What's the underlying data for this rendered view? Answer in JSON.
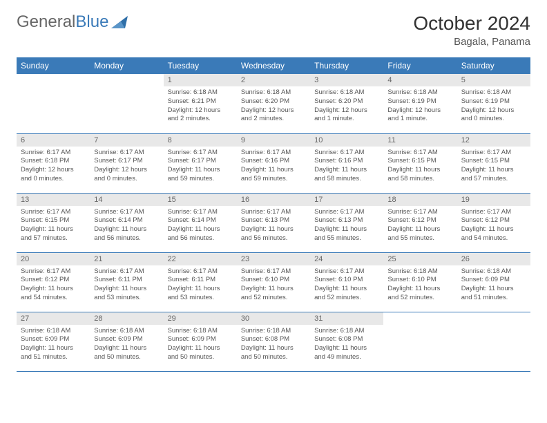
{
  "logo": {
    "word1": "General",
    "word2": "Blue",
    "icon_color": "#2f6fa8"
  },
  "title": "October 2024",
  "location": "Bagala, Panama",
  "colors": {
    "header_bg": "#3a7ab8",
    "header_fg": "#ffffff",
    "daynum_bg": "#e8e8e8",
    "border": "#3a7ab8",
    "text": "#555555"
  },
  "weekdays": [
    "Sunday",
    "Monday",
    "Tuesday",
    "Wednesday",
    "Thursday",
    "Friday",
    "Saturday"
  ],
  "first_weekday_index": 2,
  "days": [
    {
      "n": 1,
      "sunrise": "6:18 AM",
      "sunset": "6:21 PM",
      "daylight": "12 hours and 2 minutes."
    },
    {
      "n": 2,
      "sunrise": "6:18 AM",
      "sunset": "6:20 PM",
      "daylight": "12 hours and 2 minutes."
    },
    {
      "n": 3,
      "sunrise": "6:18 AM",
      "sunset": "6:20 PM",
      "daylight": "12 hours and 1 minute."
    },
    {
      "n": 4,
      "sunrise": "6:18 AM",
      "sunset": "6:19 PM",
      "daylight": "12 hours and 1 minute."
    },
    {
      "n": 5,
      "sunrise": "6:18 AM",
      "sunset": "6:19 PM",
      "daylight": "12 hours and 0 minutes."
    },
    {
      "n": 6,
      "sunrise": "6:17 AM",
      "sunset": "6:18 PM",
      "daylight": "12 hours and 0 minutes."
    },
    {
      "n": 7,
      "sunrise": "6:17 AM",
      "sunset": "6:17 PM",
      "daylight": "12 hours and 0 minutes."
    },
    {
      "n": 8,
      "sunrise": "6:17 AM",
      "sunset": "6:17 PM",
      "daylight": "11 hours and 59 minutes."
    },
    {
      "n": 9,
      "sunrise": "6:17 AM",
      "sunset": "6:16 PM",
      "daylight": "11 hours and 59 minutes."
    },
    {
      "n": 10,
      "sunrise": "6:17 AM",
      "sunset": "6:16 PM",
      "daylight": "11 hours and 58 minutes."
    },
    {
      "n": 11,
      "sunrise": "6:17 AM",
      "sunset": "6:15 PM",
      "daylight": "11 hours and 58 minutes."
    },
    {
      "n": 12,
      "sunrise": "6:17 AM",
      "sunset": "6:15 PM",
      "daylight": "11 hours and 57 minutes."
    },
    {
      "n": 13,
      "sunrise": "6:17 AM",
      "sunset": "6:15 PM",
      "daylight": "11 hours and 57 minutes."
    },
    {
      "n": 14,
      "sunrise": "6:17 AM",
      "sunset": "6:14 PM",
      "daylight": "11 hours and 56 minutes."
    },
    {
      "n": 15,
      "sunrise": "6:17 AM",
      "sunset": "6:14 PM",
      "daylight": "11 hours and 56 minutes."
    },
    {
      "n": 16,
      "sunrise": "6:17 AM",
      "sunset": "6:13 PM",
      "daylight": "11 hours and 56 minutes."
    },
    {
      "n": 17,
      "sunrise": "6:17 AM",
      "sunset": "6:13 PM",
      "daylight": "11 hours and 55 minutes."
    },
    {
      "n": 18,
      "sunrise": "6:17 AM",
      "sunset": "6:12 PM",
      "daylight": "11 hours and 55 minutes."
    },
    {
      "n": 19,
      "sunrise": "6:17 AM",
      "sunset": "6:12 PM",
      "daylight": "11 hours and 54 minutes."
    },
    {
      "n": 20,
      "sunrise": "6:17 AM",
      "sunset": "6:12 PM",
      "daylight": "11 hours and 54 minutes."
    },
    {
      "n": 21,
      "sunrise": "6:17 AM",
      "sunset": "6:11 PM",
      "daylight": "11 hours and 53 minutes."
    },
    {
      "n": 22,
      "sunrise": "6:17 AM",
      "sunset": "6:11 PM",
      "daylight": "11 hours and 53 minutes."
    },
    {
      "n": 23,
      "sunrise": "6:17 AM",
      "sunset": "6:10 PM",
      "daylight": "11 hours and 52 minutes."
    },
    {
      "n": 24,
      "sunrise": "6:17 AM",
      "sunset": "6:10 PM",
      "daylight": "11 hours and 52 minutes."
    },
    {
      "n": 25,
      "sunrise": "6:18 AM",
      "sunset": "6:10 PM",
      "daylight": "11 hours and 52 minutes."
    },
    {
      "n": 26,
      "sunrise": "6:18 AM",
      "sunset": "6:09 PM",
      "daylight": "11 hours and 51 minutes."
    },
    {
      "n": 27,
      "sunrise": "6:18 AM",
      "sunset": "6:09 PM",
      "daylight": "11 hours and 51 minutes."
    },
    {
      "n": 28,
      "sunrise": "6:18 AM",
      "sunset": "6:09 PM",
      "daylight": "11 hours and 50 minutes."
    },
    {
      "n": 29,
      "sunrise": "6:18 AM",
      "sunset": "6:09 PM",
      "daylight": "11 hours and 50 minutes."
    },
    {
      "n": 30,
      "sunrise": "6:18 AM",
      "sunset": "6:08 PM",
      "daylight": "11 hours and 50 minutes."
    },
    {
      "n": 31,
      "sunrise": "6:18 AM",
      "sunset": "6:08 PM",
      "daylight": "11 hours and 49 minutes."
    }
  ],
  "labels": {
    "sunrise": "Sunrise:",
    "sunset": "Sunset:",
    "daylight": "Daylight:"
  }
}
